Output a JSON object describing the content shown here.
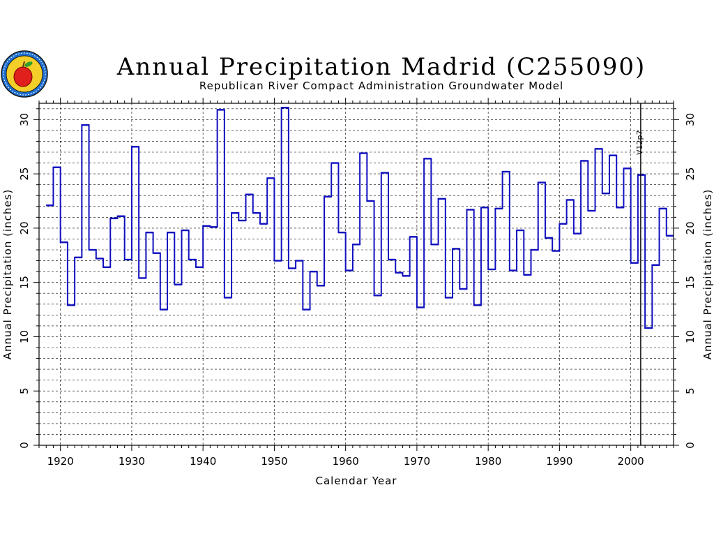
{
  "chart_data": {
    "type": "line",
    "step": true,
    "title": "Annual Precipitation Madrid (C255090)",
    "subtitle": "Republican River Compact Administration Groundwater Model",
    "xlabel": "Calendar Year",
    "ylabel": "Annual Precipitation (inches)",
    "ylabel_right": "Annual Precipitation (inches)",
    "xlim": [
      1917,
      2006
    ],
    "ylim": [
      0,
      31.5
    ],
    "xticks": [
      1920,
      1930,
      1940,
      1950,
      1960,
      1970,
      1980,
      1990,
      2000
    ],
    "yticks": [
      0,
      5,
      10,
      15,
      20,
      25,
      30
    ],
    "grid": true,
    "annotation": {
      "x": 2001,
      "label": "V12p7"
    },
    "series": [
      {
        "color": "#1010c0",
        "x": [
          1918,
          1919,
          1920,
          1921,
          1922,
          1923,
          1924,
          1925,
          1926,
          1927,
          1928,
          1929,
          1930,
          1931,
          1932,
          1933,
          1934,
          1935,
          1936,
          1937,
          1938,
          1939,
          1940,
          1941,
          1942,
          1943,
          1944,
          1945,
          1946,
          1947,
          1948,
          1949,
          1950,
          1951,
          1952,
          1953,
          1954,
          1955,
          1956,
          1957,
          1958,
          1959,
          1960,
          1961,
          1962,
          1963,
          1964,
          1965,
          1966,
          1967,
          1968,
          1969,
          1970,
          1971,
          1972,
          1973,
          1974,
          1975,
          1976,
          1977,
          1978,
          1979,
          1980,
          1981,
          1982,
          1983,
          1984,
          1985,
          1986,
          1987,
          1988,
          1989,
          1990,
          1991,
          1992,
          1993,
          1994,
          1995,
          1996,
          1997,
          1998,
          1999,
          2000,
          2001,
          2002,
          2003,
          2004,
          2005
        ],
        "values": [
          22.1,
          25.6,
          18.7,
          12.9,
          17.3,
          29.5,
          18.0,
          17.2,
          16.4,
          20.9,
          21.1,
          17.1,
          27.5,
          15.4,
          19.6,
          17.7,
          12.5,
          19.6,
          14.8,
          19.8,
          17.1,
          16.4,
          20.2,
          20.1,
          30.9,
          13.6,
          21.4,
          20.7,
          23.1,
          21.4,
          20.4,
          24.6,
          17.0,
          31.1,
          16.3,
          17.0,
          12.5,
          16.0,
          14.7,
          22.9,
          26.0,
          19.6,
          16.1,
          18.5,
          26.9,
          22.5,
          13.8,
          25.1,
          17.1,
          15.9,
          15.6,
          19.2,
          12.7,
          26.4,
          18.5,
          22.7,
          13.6,
          18.1,
          14.4,
          21.7,
          12.9,
          21.9,
          16.2,
          21.8,
          25.2,
          16.1,
          19.8,
          15.7,
          18.0,
          24.2,
          19.1,
          17.9,
          20.4,
          22.6,
          19.5,
          26.2,
          21.6,
          27.3,
          23.2,
          26.7,
          21.9,
          25.5,
          16.8,
          24.9,
          10.8,
          16.6,
          21.8,
          19.3
        ]
      }
    ]
  }
}
